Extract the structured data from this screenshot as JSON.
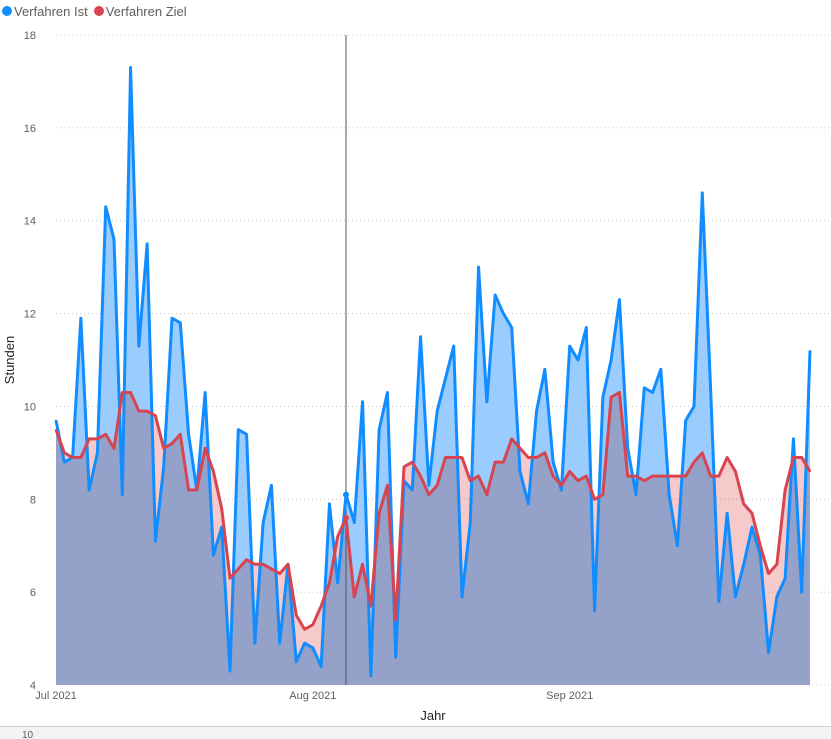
{
  "legend": {
    "items": [
      {
        "label": "Verfahren Ist",
        "color": "#118DFF"
      },
      {
        "label": "Verfahren Ziel",
        "color": "#D64550"
      }
    ]
  },
  "bottom_strip": {
    "text": "10"
  },
  "chart_data": {
    "type": "area",
    "xlabel": "Jahr",
    "ylabel": "Stunden",
    "x_start": "2021-07-01",
    "x_end": "2021-09-30",
    "xlim": [
      "2021-07-01",
      "2021-09-30"
    ],
    "ylim": [
      4,
      18
    ],
    "y_ticks": [
      4,
      6,
      8,
      10,
      12,
      14,
      16,
      18
    ],
    "x_ticks": [
      {
        "date": "2021-07-01",
        "label": "Jul 2021"
      },
      {
        "date": "2021-08-01",
        "label": "Aug 2021"
      },
      {
        "date": "2021-09-01",
        "label": "Sep 2021"
      }
    ],
    "grid": true,
    "legend_position": "top-left",
    "cursor_line_date": "2021-08-05",
    "series": [
      {
        "name": "Verfahren Ist",
        "color": "#118DFF",
        "fill": "#9ACDFD",
        "values": [
          9.7,
          8.8,
          8.9,
          11.9,
          8.2,
          9.0,
          14.3,
          13.6,
          8.1,
          17.3,
          11.3,
          13.5,
          7.1,
          8.7,
          11.9,
          11.8,
          9.4,
          8.2,
          10.3,
          6.8,
          7.4,
          4.3,
          9.5,
          9.4,
          4.9,
          7.5,
          8.3,
          4.9,
          6.6,
          4.5,
          4.9,
          4.8,
          4.4,
          7.9,
          6.2,
          8.1,
          7.5,
          10.1,
          4.2,
          9.5,
          10.3,
          4.6,
          8.4,
          8.2,
          11.5,
          8.3,
          9.9,
          10.6,
          11.3,
          5.9,
          7.5,
          13.0,
          10.1,
          12.4,
          12.0,
          11.7,
          8.6,
          7.9,
          9.9,
          10.8,
          8.8,
          8.2,
          11.3,
          11.0,
          11.7,
          5.6,
          10.2,
          11.0,
          12.3,
          9.1,
          8.1,
          10.4,
          10.3,
          10.8,
          8.1,
          7.0,
          9.7,
          10.0,
          14.6,
          10.4,
          5.8,
          7.7,
          5.9,
          6.6,
          7.4,
          6.8,
          4.7,
          5.9,
          6.3,
          9.3,
          6.0,
          11.2
        ]
      },
      {
        "name": "Verfahren Ziel",
        "color": "#D64550",
        "fill": "#F3B4B7",
        "values": [
          9.5,
          9.0,
          8.9,
          8.9,
          9.3,
          9.3,
          9.4,
          9.1,
          10.3,
          10.3,
          9.9,
          9.9,
          9.8,
          9.1,
          9.2,
          9.4,
          8.2,
          8.2,
          9.1,
          8.6,
          7.8,
          6.3,
          6.5,
          6.7,
          6.6,
          6.6,
          6.5,
          6.4,
          6.6,
          5.5,
          5.2,
          5.3,
          5.7,
          6.2,
          7.2,
          7.6,
          5.9,
          6.6,
          5.7,
          7.7,
          8.3,
          5.4,
          8.7,
          8.8,
          8.5,
          8.1,
          8.3,
          8.9,
          8.9,
          8.9,
          8.4,
          8.5,
          8.1,
          8.8,
          8.8,
          9.3,
          9.1,
          8.9,
          8.9,
          9.0,
          8.5,
          8.3,
          8.6,
          8.4,
          8.5,
          8.0,
          8.1,
          10.2,
          10.3,
          8.5,
          8.5,
          8.4,
          8.5,
          8.5,
          8.5,
          8.5,
          8.5,
          8.8,
          9.0,
          8.5,
          8.5,
          8.9,
          8.6,
          7.9,
          7.7,
          7.0,
          6.4,
          6.6,
          8.2,
          8.9,
          8.9,
          8.6
        ]
      }
    ]
  }
}
